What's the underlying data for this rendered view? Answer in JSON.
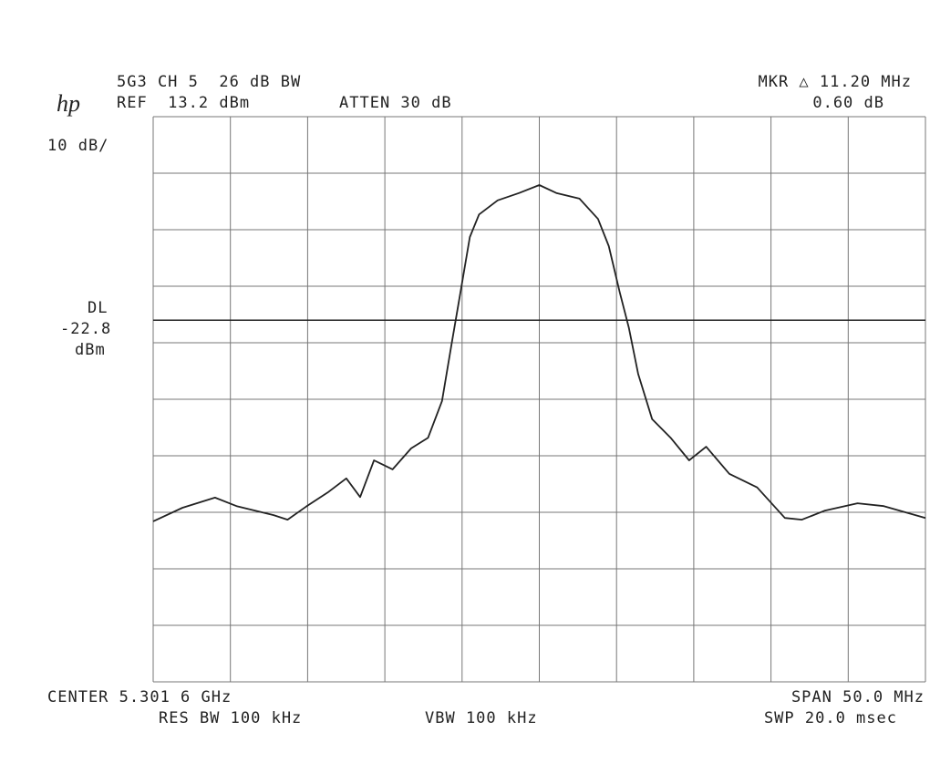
{
  "chart_data": {
    "type": "line",
    "title": "5G3 CH 5  26 dB BW",
    "ref_level": "REF  13.2 dBm",
    "attenuation": "ATTEN 30 dB",
    "logo": "hp",
    "scale": "10 dB/",
    "marker": "MKR △ 11.20 MHz",
    "marker_delta": "0.60 dB",
    "display_line": {
      "label": "DL",
      "value": -22.8,
      "unit": "dBm"
    },
    "center": "CENTER 5.301 6 GHz",
    "span": "SPAN 50.0 MHz",
    "res_bw": "RES BW 100 kHz",
    "vbw": "VBW 100 kHz",
    "sweep": "SWP 20.0 msec",
    "x": [
      5.2766,
      5.2785,
      5.2806,
      5.282,
      5.2844,
      5.2853,
      5.2865,
      5.2879,
      5.2891,
      5.29,
      5.2909,
      5.2921,
      5.2933,
      5.2944,
      5.2953,
      5.2959,
      5.2965,
      5.2971,
      5.2977,
      5.2989,
      5.3003,
      5.3016,
      5.3027,
      5.3042,
      5.3054,
      5.3061,
      5.3068,
      5.3074,
      5.308,
      5.3089,
      5.3101,
      5.3113,
      5.3124,
      5.3139,
      5.3157,
      5.3175,
      5.3186,
      5.3201,
      5.3222,
      5.3239,
      5.3266
    ],
    "values": [
      -58.4,
      -56.0,
      -54.2,
      -55.7,
      -57.3,
      -58.1,
      -55.8,
      -53.3,
      -50.8,
      -54.1,
      -47.6,
      -49.2,
      -45.5,
      -43.6,
      -37.1,
      -27.4,
      -17.8,
      -8.1,
      -4.1,
      -1.6,
      -0.3,
      1.1,
      -0.3,
      -1.3,
      -4.9,
      -9.7,
      -17.8,
      -24.2,
      -32.3,
      -40.3,
      -43.6,
      -47.6,
      -45.2,
      -50.0,
      -52.4,
      -57.8,
      -58.1,
      -56.5,
      -55.2,
      -55.7,
      -57.8
    ],
    "xlim": [
      5.2766,
      5.3266
    ],
    "ylim": [
      -86.8,
      13.2
    ],
    "color": "#222222",
    "grid": true
  }
}
